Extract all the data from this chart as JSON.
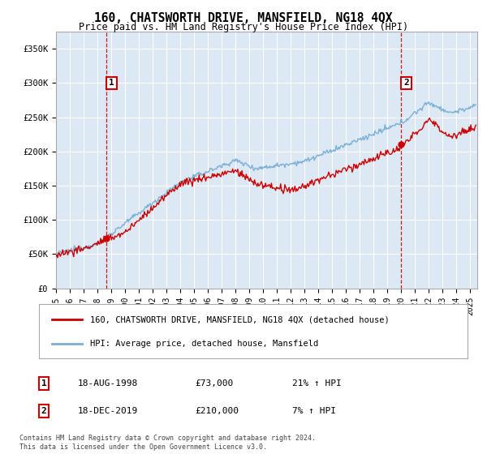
{
  "title": "160, CHATSWORTH DRIVE, MANSFIELD, NG18 4QX",
  "subtitle": "Price paid vs. HM Land Registry's House Price Index (HPI)",
  "legend_line1": "160, CHATSWORTH DRIVE, MANSFIELD, NG18 4QX (detached house)",
  "legend_line2": "HPI: Average price, detached house, Mansfield",
  "transaction1_date": "18-AUG-1998",
  "transaction1_price": "£73,000",
  "transaction1_hpi": "21% ↑ HPI",
  "transaction1_year": 1998.63,
  "transaction1_value": 73000,
  "transaction2_date": "18-DEC-2019",
  "transaction2_price": "£210,000",
  "transaction2_hpi": "7% ↑ HPI",
  "transaction2_year": 2019.96,
  "transaction2_value": 210000,
  "footer": "Contains HM Land Registry data © Crown copyright and database right 2024.\nThis data is licensed under the Open Government Licence v3.0.",
  "hpi_color": "#7ab0d4",
  "price_color": "#cc0000",
  "plot_bg": "#dde8f5",
  "ylim": [
    0,
    375000
  ],
  "yticks": [
    0,
    50000,
    100000,
    150000,
    200000,
    250000,
    300000,
    350000
  ],
  "ytick_labels": [
    "£0",
    "£50K",
    "£100K",
    "£150K",
    "£200K",
    "£250K",
    "£300K",
    "£350K"
  ],
  "xmin": 1995,
  "xmax": 2025.5,
  "xticks": [
    1995,
    1996,
    1997,
    1998,
    1999,
    2000,
    2001,
    2002,
    2003,
    2004,
    2005,
    2006,
    2007,
    2008,
    2009,
    2010,
    2011,
    2012,
    2013,
    2014,
    2015,
    2016,
    2017,
    2018,
    2019,
    2020,
    2021,
    2022,
    2023,
    2024,
    2025
  ]
}
